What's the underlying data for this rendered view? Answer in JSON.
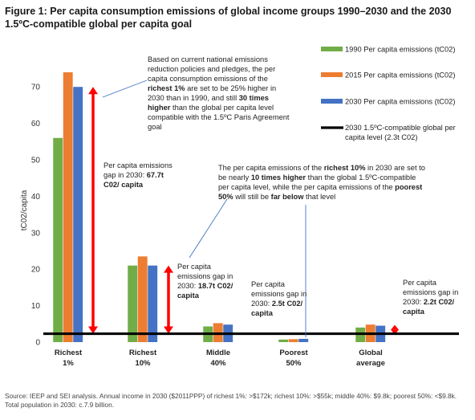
{
  "title": "Figure 1: Per capita consumption emissions of global income groups 1990–2030 and the 2030 1.5ºC-compatible global per capita goal",
  "source": "Source: IEEP and SEI analysis. Annual income in 2030 ($2011PPP) of richest 1%: >$172k; richest 10%: >$55k; middle 40%: $9.8k; poorest 50%: <$9.8k. Total population in 2030: c.7.9 billion.",
  "colors": {
    "s1990": "#70ad47",
    "s2015": "#ed7d31",
    "s2030": "#4472c4",
    "goal": "#000000",
    "gap_arrow": "#ff0000"
  },
  "chart_data": {
    "type": "bar",
    "categories": [
      "Richest 1%",
      "Richest 10%",
      "Middle 40%",
      "Poorest 50%",
      "Global average"
    ],
    "category_lines": [
      [
        "Richest",
        "1%"
      ],
      [
        "Richest",
        "10%"
      ],
      [
        "Middle",
        "40%"
      ],
      [
        "Poorest",
        "50%"
      ],
      [
        "Global",
        "average"
      ]
    ],
    "series": [
      {
        "name": "1990 Per capita emissions (tC02)",
        "values": [
          56,
          21,
          4.3,
          0.7,
          4.0
        ],
        "color": "#70ad47"
      },
      {
        "name": "2015 Per capita emissions (tC02)",
        "values": [
          74,
          23.5,
          5.2,
          0.8,
          4.8
        ],
        "color": "#ed7d31"
      },
      {
        "name": "2030 Per capita emissions (tC02)",
        "values": [
          70,
          21,
          4.8,
          0.9,
          4.5
        ],
        "color": "#4472c4"
      }
    ],
    "goal_line": {
      "name": "2030 1.5ºC-compatible global per capita level (2.3t C02)",
      "value": 2.3
    },
    "gap_arrows": [
      {
        "category": "Richest 1%",
        "from": 2.3,
        "to": 70
      },
      {
        "category": "Richest 10%",
        "from": 2.3,
        "to": 21
      },
      {
        "category": "Global average",
        "from": 2.3,
        "to": 4.5
      }
    ],
    "ylabel": "tC02/capita",
    "xlabel": "",
    "ylim": [
      0,
      75
    ],
    "yticks": [
      0,
      10,
      20,
      30,
      40,
      50,
      60,
      70
    ],
    "legend_position": "top-right",
    "grid": false,
    "annotations": {
      "top": "Based on current national emissions reduction policies and pledges, the per capita consumption emissions of the richest 1% are set to be 25% higher in 2030 than in 1990, and still 30 times higher than the global per capita level compatible with the 1.5ºC Paris Agreement goal",
      "gap1": "Per capita emissions gap in 2030: 67.7t C02/ capita",
      "gap10": "Per capita emissions gap in 2030: 18.7t C02/ capita",
      "gap40": "Per capita emissions gap in 2030: 2.5t C02/ capita",
      "gapavg": "Per capita emissions gap in 2030: 2.2t C02/ capita",
      "mid": "The per capita emissions of the richest 10% in 2030 are set to be nearly 10 times higher than the global 1.5ºC-compatible per capita level, while the per capita emissions of the poorest 50% will still be far below that level"
    }
  }
}
